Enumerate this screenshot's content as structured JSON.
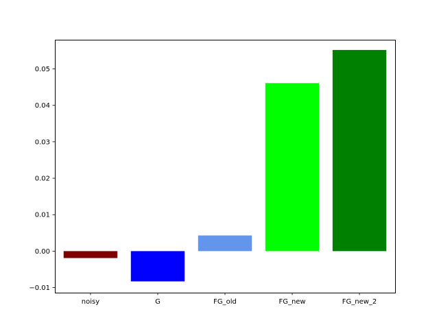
{
  "chart_data": {
    "type": "bar",
    "categories": [
      "noisy",
      "G",
      "FG_old",
      "FG_new",
      "FG_new_2"
    ],
    "values": [
      -0.0019,
      -0.0083,
      0.0043,
      0.0461,
      0.0552
    ],
    "colors": [
      "#800000",
      "#0000ff",
      "#6495ed",
      "#00ff00",
      "#008000"
    ],
    "ylim": [
      -0.0114,
      0.058
    ],
    "yticks": [
      -0.01,
      0.0,
      0.01,
      0.02,
      0.03,
      0.04,
      0.05
    ],
    "ytick_labels": [
      "−0.01",
      "0.00",
      "0.01",
      "0.02",
      "0.03",
      "0.04",
      "0.05"
    ],
    "grid": false,
    "title": "",
    "xlabel": "",
    "ylabel": ""
  }
}
